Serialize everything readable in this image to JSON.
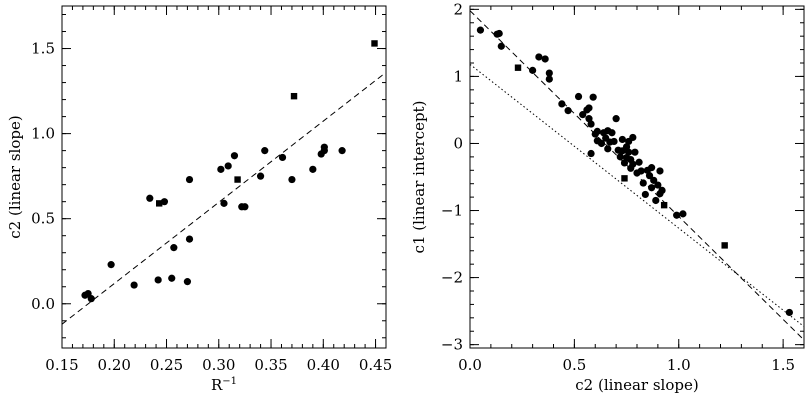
{
  "chart_data": [
    {
      "type": "scatter",
      "title": "",
      "xlabel": "R",
      "xlabel_sup": "−1",
      "ylabel": "c2 (linear slope)",
      "xlim": [
        0.15,
        0.46
      ],
      "ylim": [
        -0.26,
        1.75
      ],
      "grid": false,
      "xticks": [
        0.15,
        0.2,
        0.25,
        0.3,
        0.35,
        0.4,
        0.45
      ],
      "xtick_labels": [
        "0.15",
        "0.20",
        "0.25",
        "0.30",
        "0.35",
        "0.40",
        "0.45"
      ],
      "yticks": [
        0.0,
        0.5,
        1.0,
        1.5
      ],
      "ytick_labels": [
        "0.0",
        "0.5",
        "1.0",
        "1.5"
      ],
      "points": [
        {
          "x": 0.172,
          "y": 0.05,
          "marker": "circle"
        },
        {
          "x": 0.175,
          "y": 0.06,
          "marker": "circle"
        },
        {
          "x": 0.178,
          "y": 0.03,
          "marker": "circle"
        },
        {
          "x": 0.197,
          "y": 0.23,
          "marker": "circle"
        },
        {
          "x": 0.219,
          "y": 0.11,
          "marker": "circle"
        },
        {
          "x": 0.234,
          "y": 0.62,
          "marker": "circle"
        },
        {
          "x": 0.242,
          "y": 0.14,
          "marker": "circle"
        },
        {
          "x": 0.243,
          "y": 0.59,
          "marker": "square"
        },
        {
          "x": 0.248,
          "y": 0.6,
          "marker": "circle"
        },
        {
          "x": 0.255,
          "y": 0.15,
          "marker": "circle"
        },
        {
          "x": 0.257,
          "y": 0.33,
          "marker": "circle"
        },
        {
          "x": 0.27,
          "y": 0.13,
          "marker": "circle"
        },
        {
          "x": 0.272,
          "y": 0.38,
          "marker": "circle"
        },
        {
          "x": 0.272,
          "y": 0.73,
          "marker": "circle"
        },
        {
          "x": 0.302,
          "y": 0.79,
          "marker": "circle"
        },
        {
          "x": 0.305,
          "y": 0.59,
          "marker": "circle"
        },
        {
          "x": 0.309,
          "y": 0.81,
          "marker": "circle"
        },
        {
          "x": 0.315,
          "y": 0.87,
          "marker": "circle"
        },
        {
          "x": 0.318,
          "y": 0.73,
          "marker": "square"
        },
        {
          "x": 0.322,
          "y": 0.57,
          "marker": "circle"
        },
        {
          "x": 0.325,
          "y": 0.57,
          "marker": "circle"
        },
        {
          "x": 0.34,
          "y": 0.75,
          "marker": "circle"
        },
        {
          "x": 0.344,
          "y": 0.9,
          "marker": "circle"
        },
        {
          "x": 0.361,
          "y": 0.86,
          "marker": "circle"
        },
        {
          "x": 0.37,
          "y": 0.73,
          "marker": "circle"
        },
        {
          "x": 0.372,
          "y": 1.22,
          "marker": "square"
        },
        {
          "x": 0.39,
          "y": 0.79,
          "marker": "circle"
        },
        {
          "x": 0.398,
          "y": 0.88,
          "marker": "circle"
        },
        {
          "x": 0.401,
          "y": 0.92,
          "marker": "circle"
        },
        {
          "x": 0.401,
          "y": 0.9,
          "marker": "circle"
        },
        {
          "x": 0.418,
          "y": 0.9,
          "marker": "circle"
        },
        {
          "x": 0.449,
          "y": 1.53,
          "marker": "square"
        }
      ],
      "fit_lines": [
        {
          "style": "dashed",
          "x": [
            0.15,
            0.46
          ],
          "y": [
            -0.12,
            1.36
          ]
        }
      ]
    },
    {
      "type": "scatter",
      "title": "",
      "xlabel": "c2 (linear slope)",
      "ylabel": "c1 (linear intercept)",
      "xlim": [
        0.0,
        1.6
      ],
      "ylim": [
        -3.05,
        2.05
      ],
      "grid": false,
      "xticks": [
        0.0,
        0.5,
        1.0,
        1.5
      ],
      "xtick_labels": [
        "0.0",
        "0.5",
        "1.0",
        "1.5"
      ],
      "yticks": [
        -3,
        -2,
        -1,
        0,
        1,
        2
      ],
      "ytick_labels": [
        "−3",
        "−2",
        "−1",
        "0",
        "1",
        "2"
      ],
      "points": [
        {
          "x": 0.05,
          "y": 1.69,
          "marker": "circle"
        },
        {
          "x": 0.13,
          "y": 1.63,
          "marker": "circle"
        },
        {
          "x": 0.14,
          "y": 1.64,
          "marker": "circle"
        },
        {
          "x": 0.15,
          "y": 1.45,
          "marker": "circle"
        },
        {
          "x": 0.23,
          "y": 1.13,
          "marker": "square"
        },
        {
          "x": 0.3,
          "y": 1.09,
          "marker": "circle"
        },
        {
          "x": 0.33,
          "y": 1.29,
          "marker": "circle"
        },
        {
          "x": 0.36,
          "y": 1.26,
          "marker": "circle"
        },
        {
          "x": 0.38,
          "y": 1.05,
          "marker": "circle"
        },
        {
          "x": 0.38,
          "y": 0.96,
          "marker": "circle"
        },
        {
          "x": 0.44,
          "y": 0.59,
          "marker": "circle"
        },
        {
          "x": 0.47,
          "y": 0.49,
          "marker": "circle"
        },
        {
          "x": 0.52,
          "y": 0.7,
          "marker": "circle"
        },
        {
          "x": 0.54,
          "y": 0.43,
          "marker": "circle"
        },
        {
          "x": 0.56,
          "y": 0.5,
          "marker": "circle"
        },
        {
          "x": 0.57,
          "y": 0.53,
          "marker": "circle"
        },
        {
          "x": 0.57,
          "y": 0.37,
          "marker": "circle"
        },
        {
          "x": 0.58,
          "y": 0.29,
          "marker": "circle"
        },
        {
          "x": 0.58,
          "y": -0.15,
          "marker": "circle"
        },
        {
          "x": 0.59,
          "y": 0.69,
          "marker": "circle"
        },
        {
          "x": 0.6,
          "y": 0.14,
          "marker": "circle"
        },
        {
          "x": 0.61,
          "y": 0.18,
          "marker": "circle"
        },
        {
          "x": 0.61,
          "y": 0.04,
          "marker": "circle"
        },
        {
          "x": 0.63,
          "y": 0.0,
          "marker": "circle"
        },
        {
          "x": 0.64,
          "y": 0.16,
          "marker": "circle"
        },
        {
          "x": 0.65,
          "y": 0.08,
          "marker": "circle"
        },
        {
          "x": 0.66,
          "y": -0.08,
          "marker": "circle"
        },
        {
          "x": 0.66,
          "y": 0.19,
          "marker": "circle"
        },
        {
          "x": 0.67,
          "y": 0.02,
          "marker": "circle"
        },
        {
          "x": 0.68,
          "y": 0.16,
          "marker": "circle"
        },
        {
          "x": 0.69,
          "y": 0.03,
          "marker": "circle"
        },
        {
          "x": 0.7,
          "y": 0.37,
          "marker": "circle"
        },
        {
          "x": 0.71,
          "y": -0.1,
          "marker": "circle"
        },
        {
          "x": 0.72,
          "y": -0.2,
          "marker": "circle"
        },
        {
          "x": 0.73,
          "y": 0.06,
          "marker": "circle"
        },
        {
          "x": 0.73,
          "y": -0.11,
          "marker": "circle"
        },
        {
          "x": 0.74,
          "y": -0.29,
          "marker": "circle"
        },
        {
          "x": 0.74,
          "y": -0.52,
          "marker": "square"
        },
        {
          "x": 0.75,
          "y": -0.05,
          "marker": "circle"
        },
        {
          "x": 0.75,
          "y": -0.21,
          "marker": "circle"
        },
        {
          "x": 0.76,
          "y": 0.03,
          "marker": "circle"
        },
        {
          "x": 0.76,
          "y": -0.13,
          "marker": "circle"
        },
        {
          "x": 0.77,
          "y": -0.24,
          "marker": "circle"
        },
        {
          "x": 0.77,
          "y": -0.37,
          "marker": "circle"
        },
        {
          "x": 0.78,
          "y": 0.09,
          "marker": "circle"
        },
        {
          "x": 0.78,
          "y": -0.31,
          "marker": "circle"
        },
        {
          "x": 0.79,
          "y": -0.13,
          "marker": "circle"
        },
        {
          "x": 0.8,
          "y": -0.44,
          "marker": "circle"
        },
        {
          "x": 0.81,
          "y": -0.28,
          "marker": "circle"
        },
        {
          "x": 0.82,
          "y": -0.41,
          "marker": "circle"
        },
        {
          "x": 0.83,
          "y": -0.59,
          "marker": "circle"
        },
        {
          "x": 0.84,
          "y": -0.76,
          "marker": "circle"
        },
        {
          "x": 0.85,
          "y": -0.4,
          "marker": "circle"
        },
        {
          "x": 0.86,
          "y": -0.48,
          "marker": "circle"
        },
        {
          "x": 0.87,
          "y": -0.36,
          "marker": "circle"
        },
        {
          "x": 0.87,
          "y": -0.66,
          "marker": "circle"
        },
        {
          "x": 0.88,
          "y": -0.55,
          "marker": "circle"
        },
        {
          "x": 0.89,
          "y": -0.85,
          "marker": "circle"
        },
        {
          "x": 0.9,
          "y": -0.62,
          "marker": "circle"
        },
        {
          "x": 0.91,
          "y": -0.41,
          "marker": "circle"
        },
        {
          "x": 0.91,
          "y": -0.75,
          "marker": "circle"
        },
        {
          "x": 0.92,
          "y": -0.7,
          "marker": "circle"
        },
        {
          "x": 0.93,
          "y": -0.92,
          "marker": "square"
        },
        {
          "x": 0.99,
          "y": -1.07,
          "marker": "circle"
        },
        {
          "x": 1.02,
          "y": -1.05,
          "marker": "circle"
        },
        {
          "x": 1.22,
          "y": -1.52,
          "marker": "square"
        },
        {
          "x": 1.53,
          "y": -2.52,
          "marker": "circle"
        }
      ],
      "fit_lines": [
        {
          "style": "dashed",
          "x": [
            0.0,
            1.6
          ],
          "y": [
            1.98,
            -2.93
          ]
        },
        {
          "style": "dotted",
          "x": [
            0.0,
            1.6
          ],
          "y": [
            1.18,
            -2.73
          ]
        }
      ]
    }
  ]
}
